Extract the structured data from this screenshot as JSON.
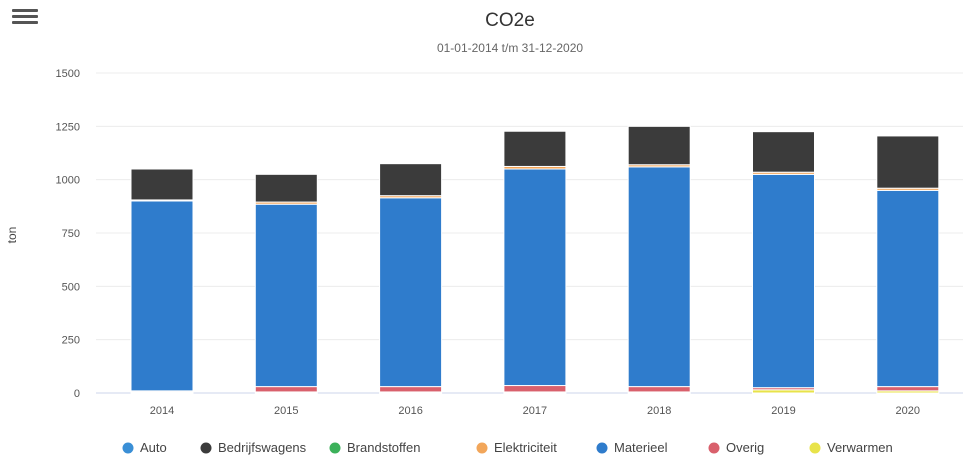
{
  "menu": {
    "icon": "hamburger-menu-icon"
  },
  "chart_data": {
    "type": "bar",
    "stacked": true,
    "title": "CO2e",
    "subtitle": "01-01-2014 t/m 31-12-2020",
    "xlabel": "",
    "ylabel": "ton",
    "ylim": [
      0,
      1500
    ],
    "yticks": [
      0,
      250,
      500,
      750,
      1000,
      1250,
      1500
    ],
    "categories": [
      "2014",
      "2015",
      "2016",
      "2017",
      "2018",
      "2019",
      "2020"
    ],
    "grid": true,
    "legend_position": "bottom",
    "series": [
      {
        "name": "Auto",
        "color": "#3a8fd6",
        "values": [
          0,
          0,
          0,
          0,
          0,
          0,
          0
        ]
      },
      {
        "name": "Bedrijfswagens",
        "color": "#3b3b3b",
        "values": [
          145,
          130,
          150,
          165,
          180,
          190,
          245
        ]
      },
      {
        "name": "Brandstoffen",
        "color": "#3cb15a",
        "values": [
          0,
          0,
          0,
          0,
          0,
          0,
          0
        ]
      },
      {
        "name": "Elektriciteit",
        "color": "#f2a65a",
        "values": [
          5,
          10,
          10,
          12,
          10,
          10,
          10
        ]
      },
      {
        "name": "Materieel",
        "color": "#2f7ccc",
        "values": [
          890,
          855,
          885,
          1015,
          1030,
          1000,
          920
        ]
      },
      {
        "name": "Overig",
        "color": "#d9606c",
        "values": [
          5,
          25,
          25,
          30,
          25,
          10,
          20
        ]
      },
      {
        "name": "Verwarmen",
        "color": "#e8e34a",
        "values": [
          5,
          5,
          5,
          5,
          5,
          15,
          10
        ]
      }
    ]
  }
}
